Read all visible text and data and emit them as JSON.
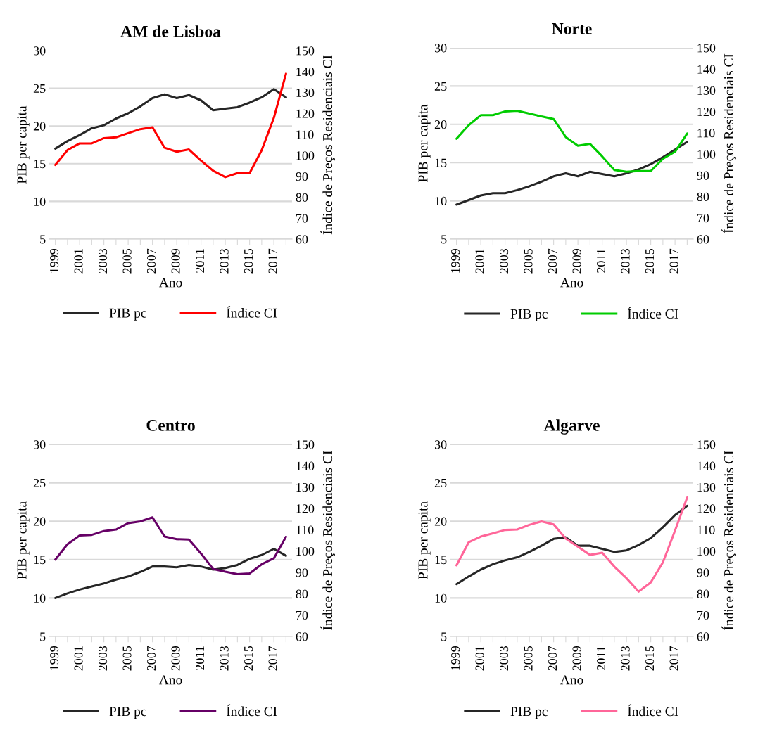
{
  "chart_data": [
    {
      "type": "line",
      "title": "AM de Lisboa",
      "xlabel": "Ano",
      "ylabel": "PIB per capita",
      "y2label": "Índice de Preços Residenciais CI",
      "categories": [
        "1999",
        null,
        "2001",
        null,
        "2003",
        null,
        "2005",
        null,
        "2007",
        null,
        "2009",
        null,
        "2011",
        null,
        "2013",
        null,
        "2015",
        null,
        "2017",
        null
      ],
      "ylim": [
        5,
        30
      ],
      "yticks": [
        5,
        10,
        15,
        20,
        25,
        30
      ],
      "y2lim": [
        60,
        150
      ],
      "y2ticks": [
        60,
        70,
        80,
        90,
        100,
        110,
        120,
        130,
        140,
        150
      ],
      "grid": "y",
      "legend": "bottom",
      "series": [
        {
          "name": "PIB pc",
          "color": "#262626",
          "values": [
            17.0,
            18.0,
            18.8,
            19.7,
            20.1,
            21.0,
            21.7,
            22.6,
            23.7,
            24.2,
            23.7,
            24.1,
            23.4,
            22.1,
            22.3,
            22.5,
            23.1,
            23.8,
            24.9,
            23.8
          ]
        },
        {
          "name": "Índice CI",
          "color": "#ff0000",
          "axis": "y2",
          "values": [
            95.4,
            102.5,
            105.7,
            105.7,
            108.2,
            108.6,
            110.6,
            112.5,
            113.4,
            103.6,
            101.7,
            102.8,
            97.5,
            92.6,
            89.6,
            91.5,
            91.5,
            102.5,
            117.9,
            139.0
          ]
        }
      ]
    },
    {
      "type": "line",
      "title": "Norte",
      "xlabel": "Ano",
      "ylabel": "PIB per capita",
      "y2label": "Índice de Preços Residenciais CI",
      "categories": [
        "1999",
        null,
        "2001",
        null,
        "2003",
        null,
        "2005",
        null,
        "2007",
        null,
        "2009",
        null,
        "2011",
        null,
        "2013",
        null,
        "2015",
        null,
        "2017",
        null
      ],
      "ylim": [
        5,
        30
      ],
      "yticks": [
        5,
        10,
        15,
        20,
        25,
        30
      ],
      "y2lim": [
        60,
        150
      ],
      "y2ticks": [
        60,
        70,
        80,
        90,
        100,
        110,
        120,
        130,
        140,
        150
      ],
      "grid": "y",
      "legend": "bottom",
      "series": [
        {
          "name": "PIB pc",
          "color": "#262626",
          "values": [
            9.5,
            10.1,
            10.7,
            11.0,
            11.0,
            11.4,
            11.9,
            12.5,
            13.2,
            13.6,
            13.2,
            13.8,
            13.5,
            13.2,
            13.6,
            14.1,
            14.8,
            15.7,
            16.7,
            17.7
          ]
        },
        {
          "name": "Índice CI",
          "color": "#00cc00",
          "axis": "y2",
          "values": [
            107.2,
            113.6,
            118.3,
            118.3,
            120.1,
            120.4,
            119.1,
            117.7,
            116.5,
            108.0,
            103.9,
            104.8,
            98.9,
            92.5,
            91.7,
            92.0,
            92.0,
            97.8,
            101.1,
            109.7
          ]
        }
      ]
    },
    {
      "type": "line",
      "title": "Centro",
      "xlabel": "Ano",
      "ylabel": "PIB per capita",
      "y2label": "Índice de Preços Residenciais CI",
      "categories": [
        "1999",
        null,
        "2001",
        null,
        "2003",
        null,
        "2005",
        null,
        "2007",
        null,
        "2009",
        null,
        "2011",
        null,
        "2013",
        null,
        "2015",
        null,
        "2017",
        null
      ],
      "ylim": [
        5,
        30
      ],
      "yticks": [
        5,
        10,
        15,
        20,
        25,
        30
      ],
      "y2lim": [
        60,
        150
      ],
      "y2ticks": [
        60,
        70,
        80,
        90,
        100,
        110,
        120,
        130,
        140,
        150
      ],
      "grid": "y",
      "legend": "bottom",
      "series": [
        {
          "name": "PIB pc",
          "color": "#262626",
          "values": [
            10.0,
            10.6,
            11.1,
            11.5,
            11.9,
            12.4,
            12.8,
            13.4,
            14.1,
            14.1,
            14.0,
            14.3,
            14.1,
            13.7,
            13.9,
            14.3,
            15.1,
            15.6,
            16.4,
            15.5
          ]
        },
        {
          "name": "Índice CI",
          "color": "#660066",
          "axis": "y2",
          "values": [
            96.0,
            103.2,
            107.3,
            107.6,
            109.4,
            110.1,
            113.1,
            113.9,
            115.8,
            106.8,
            105.6,
            105.4,
            98.8,
            91.6,
            90.3,
            89.2,
            89.5,
            93.8,
            96.6,
            106.7
          ]
        }
      ]
    },
    {
      "type": "line",
      "title": "Algarve",
      "xlabel": "Ano",
      "ylabel": "PIB per capita",
      "y2label": "Índice de Preços Residenciais CI",
      "categories": [
        "1999",
        null,
        "2001",
        null,
        "2003",
        null,
        "2005",
        null,
        "2007",
        null,
        "2009",
        null,
        "2011",
        null,
        "2013",
        null,
        "2015",
        null,
        "2017",
        null
      ],
      "ylim": [
        5,
        30
      ],
      "yticks": [
        5,
        10,
        15,
        20,
        25,
        30
      ],
      "y2lim": [
        60,
        150
      ],
      "y2ticks": [
        60,
        70,
        80,
        90,
        100,
        110,
        120,
        130,
        140,
        150
      ],
      "grid": "y",
      "legend": "bottom",
      "series": [
        {
          "name": "PIB pc",
          "color": "#262626",
          "values": [
            11.8,
            12.8,
            13.7,
            14.4,
            14.9,
            15.3,
            16.0,
            16.8,
            17.7,
            17.9,
            16.8,
            16.8,
            16.4,
            16.0,
            16.2,
            16.9,
            17.8,
            19.2,
            20.8,
            22.0
          ]
        },
        {
          "name": "Índice CI",
          "color": "#ff6699",
          "axis": "y2",
          "values": [
            93.3,
            104.1,
            106.8,
            108.3,
            109.9,
            110.1,
            112.3,
            113.9,
            112.5,
            105.8,
            102.0,
            98.2,
            99.2,
            92.7,
            87.3,
            81.0,
            85.3,
            94.7,
            109.6,
            125.1
          ]
        }
      ]
    }
  ]
}
